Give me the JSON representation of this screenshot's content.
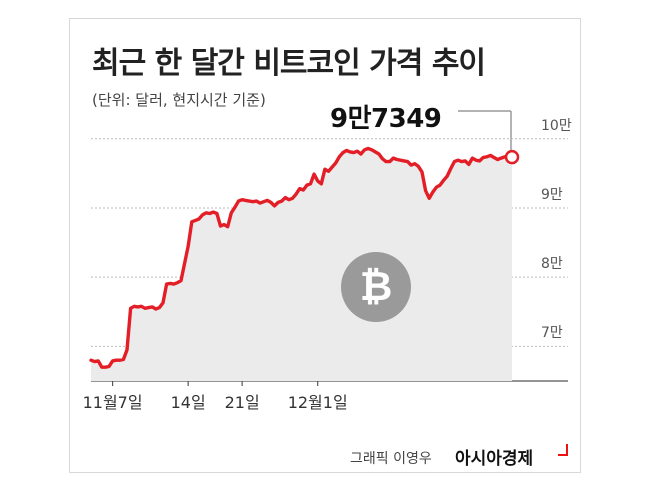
{
  "header": {
    "title": "최근 한 달간 비트코인 가격 추이",
    "subtitle": "(단위: 달러, 현지시간 기준)"
  },
  "callout": {
    "text": "9만7349"
  },
  "footer": {
    "credit": "그래픽 이영우",
    "brand": "아시아경제"
  },
  "colors": {
    "line": "#e41e26",
    "area": "#ebebeb",
    "grid": "#bbbbbb",
    "coin": "#9a9a9a"
  },
  "icon": "bitcoin-icon",
  "chart_data": {
    "type": "area",
    "title": "최근 한 달간 비트코인 가격 추이",
    "units": "달러",
    "ylim": [
      65000,
      103000
    ],
    "ytick_values": [
      100000,
      90000,
      80000,
      70000
    ],
    "ytick_labels": [
      "10만",
      "9만",
      "8만",
      "7만"
    ],
    "xtick_indices": [
      6,
      27,
      42,
      63
    ],
    "xtick_labels": [
      "11월7일",
      "14일",
      "21일",
      "12월1일"
    ],
    "grid": true,
    "series": [
      {
        "values": [
          68000,
          67800,
          67900,
          67000,
          67000,
          67100,
          67900,
          68000,
          68000,
          68100,
          69500,
          75500,
          75800,
          75700,
          75800,
          75500,
          75600,
          75700,
          75400,
          75600,
          76300,
          79000,
          79100,
          79000,
          79200,
          79500,
          82000,
          84500,
          88000,
          88200,
          88400,
          89000,
          89300,
          89200,
          89400,
          89200,
          87400,
          87600,
          87300,
          89300,
          90100,
          91000,
          91200,
          91100,
          91000,
          90900,
          91000,
          90700,
          90900,
          91100,
          90800,
          90300,
          90800,
          91000,
          91500,
          91200,
          91400,
          92000,
          92800,
          92600,
          93300,
          93500,
          94900,
          93900,
          93500,
          95600,
          95300,
          95900,
          96500,
          97400,
          98000,
          98300,
          98100,
          98000,
          98200,
          97800,
          98400,
          98600,
          98400,
          98100,
          97800,
          97100,
          96700,
          96700,
          97200,
          97000,
          96900,
          96800,
          96700,
          96200,
          96400,
          96000,
          95200,
          92500,
          91400,
          92300,
          93000,
          93300,
          94000,
          94600,
          95700,
          96700,
          96900,
          96700,
          96800,
          96300,
          97200,
          96900,
          96800,
          97300,
          97400,
          97600,
          97300,
          97000,
          97200,
          97400,
          97300,
          97349
        ]
      }
    ]
  }
}
